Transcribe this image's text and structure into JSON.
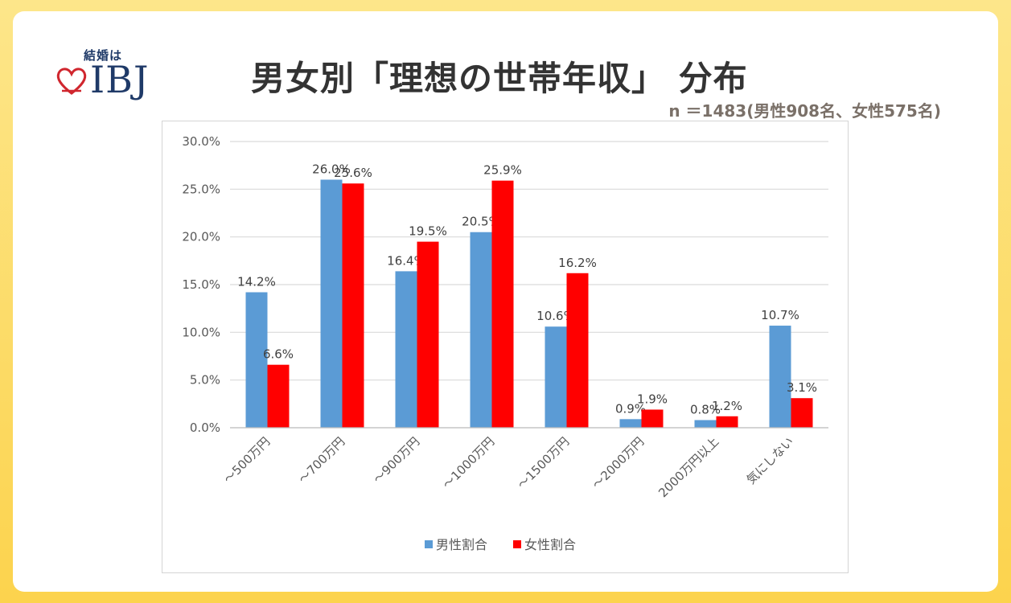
{
  "header": {
    "logo_small": "結婚は",
    "logo_text": "IBJ",
    "title": "男女別「理想の世帯年収」 分布",
    "subtitle": "n ＝1483(男性908名、女性575名)"
  },
  "colors": {
    "male": "#5b9bd5",
    "female": "#ff0000",
    "logo": "#1f3a68",
    "heart": "#d0262e"
  },
  "chart_data": {
    "type": "bar",
    "categories": [
      "～500万円",
      "～700万円",
      "～900万円",
      "～1000万円",
      "～1500万円",
      "～2000万円",
      "2000万円以上",
      "気にしない"
    ],
    "series": [
      {
        "name": "男性割合",
        "values": [
          14.2,
          26.0,
          16.4,
          20.5,
          10.6,
          0.9,
          0.8,
          10.7
        ],
        "labels": [
          "14.2%",
          "26.0%",
          "16.4%",
          "20.5%",
          "10.6%",
          "0.9%",
          "0.8%",
          "10.7%"
        ]
      },
      {
        "name": "女性割合",
        "values": [
          6.6,
          25.6,
          19.5,
          25.9,
          16.2,
          1.9,
          1.2,
          3.1
        ],
        "labels": [
          "6.6%",
          "25.6%",
          "19.5%",
          "25.9%",
          "16.2%",
          "1.9%",
          "1.2%",
          "3.1%"
        ]
      }
    ],
    "y_ticks": [
      0,
      5,
      10,
      15,
      20,
      25,
      30
    ],
    "y_tick_labels": [
      "0.0%",
      "5.0%",
      "10.0%",
      "15.0%",
      "20.0%",
      "25.0%",
      "30.0%"
    ],
    "ylim": [
      0,
      30
    ],
    "grid": true,
    "legend": "bottom-center"
  }
}
